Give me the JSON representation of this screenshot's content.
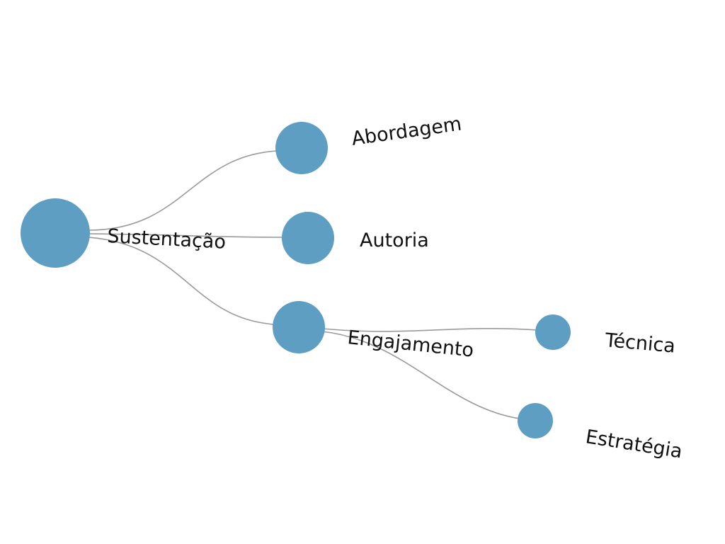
{
  "tree": {
    "root": {
      "id": "sustentacao",
      "label": "Sustentação",
      "children": [
        {
          "id": "abordagem",
          "label": "Abordagem",
          "children": []
        },
        {
          "id": "autoria",
          "label": "Autoria",
          "children": []
        },
        {
          "id": "engajamento",
          "label": "Engajamento",
          "children": [
            {
              "id": "tecnica",
              "label": "Técnica",
              "children": []
            },
            {
              "id": "estrategia",
              "label": "Estratégia",
              "children": []
            }
          ]
        }
      ]
    },
    "colors": {
      "node": "#5e9ec3",
      "edge": "#9a9a9a",
      "text": "#111111"
    }
  }
}
